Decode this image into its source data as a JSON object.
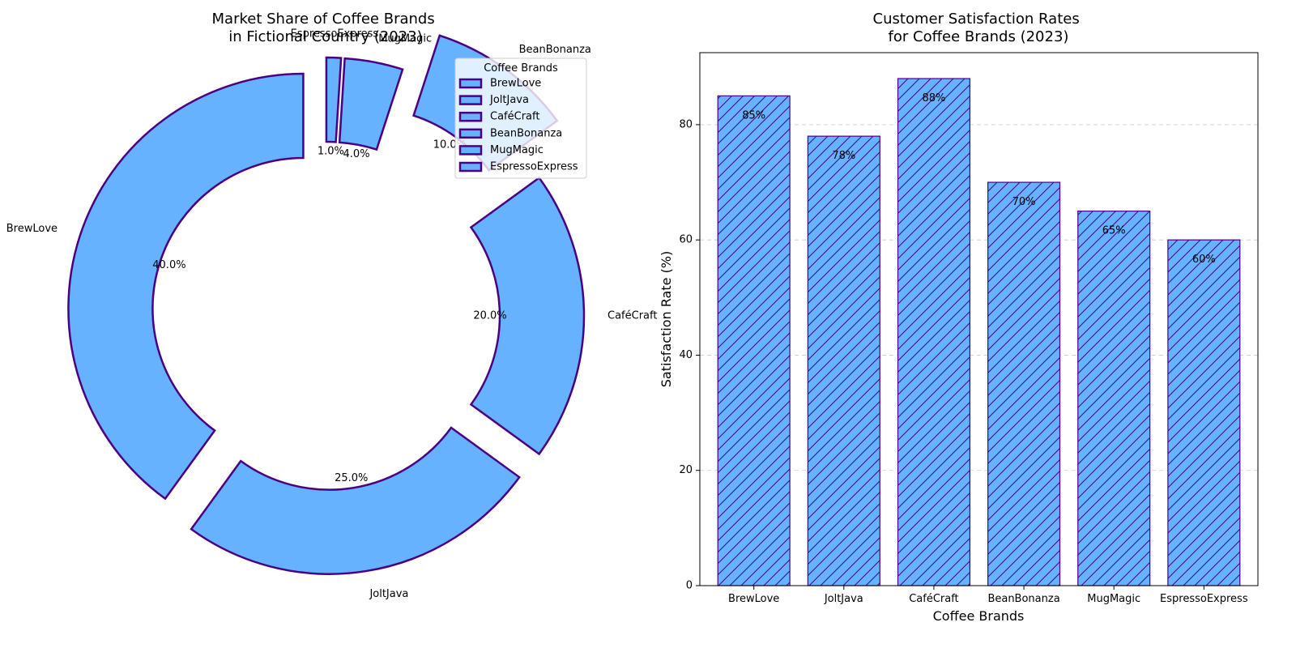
{
  "colors": {
    "fill": "#66b2ff",
    "edge": "#4b0082",
    "grid": "#cccccc",
    "axis": "#000000"
  },
  "chart_data": [
    {
      "type": "pie",
      "style": "donut",
      "title": "Market Share of Coffee Brands\nin Fictional Country (2023)",
      "legend": {
        "title": "Coffee Brands",
        "placement": "upper-right"
      },
      "start_angle_deg": 90,
      "direction": "counterclockwise",
      "slices": [
        {
          "label": "BrewLove",
          "value": 40.0,
          "pct_label": "40.0%",
          "explode": 0.1
        },
        {
          "label": "JoltJava",
          "value": 25.0,
          "pct_label": "25.0%",
          "explode": 0.1
        },
        {
          "label": "CaféCraft",
          "value": 20.0,
          "pct_label": "20.0%",
          "explode": 0.1
        },
        {
          "label": "BeanBonanza",
          "value": 10.0,
          "pct_label": "10.0%",
          "explode": 0.3
        },
        {
          "label": "MugMagic",
          "value": 4.0,
          "pct_label": "4.0%",
          "explode": 0.1
        },
        {
          "label": "EspressoExpress",
          "value": 1.0,
          "pct_label": "1.0%",
          "explode": 0.1
        }
      ]
    },
    {
      "type": "bar",
      "title": "Customer Satisfaction Rates\nfor Coffee Brands (2023)",
      "xlabel": "Coffee Brands",
      "ylabel": "Satisfaction Rate (%)",
      "categories": [
        "BrewLove",
        "JoltJava",
        "CaféCraft",
        "BeanBonanza",
        "MugMagic",
        "EspressoExpress"
      ],
      "values": [
        85,
        78,
        88,
        70,
        65,
        60
      ],
      "value_labels": [
        "85%",
        "78%",
        "88%",
        "70%",
        "65%",
        "60%"
      ],
      "ylim": [
        0,
        92.5
      ],
      "yticks": [
        0,
        20,
        40,
        60,
        80
      ],
      "grid": "y-dashed",
      "hatch": "diagonal"
    }
  ]
}
